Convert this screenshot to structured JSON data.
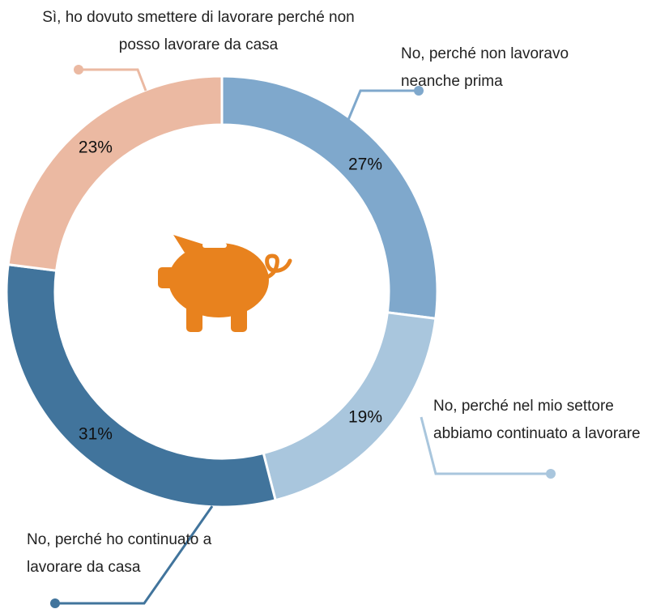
{
  "chart_data": {
    "type": "pie",
    "categories": [
      "No, perché non lavoravo neanche prima",
      "No, perché nel mio settore abbiamo continuato a lavorare",
      "No, perché ho continuato a lavorare da casa",
      "Sì, ho dovuto smettere di lavorare perché non posso lavorare da casa"
    ],
    "values": [
      27,
      19,
      31,
      23
    ],
    "value_labels": [
      "27%",
      "19%",
      "31%",
      "23%"
    ],
    "colors": [
      "#7fa8cc",
      "#a9c6dd",
      "#41749c",
      "#ebb9a2"
    ]
  }
}
